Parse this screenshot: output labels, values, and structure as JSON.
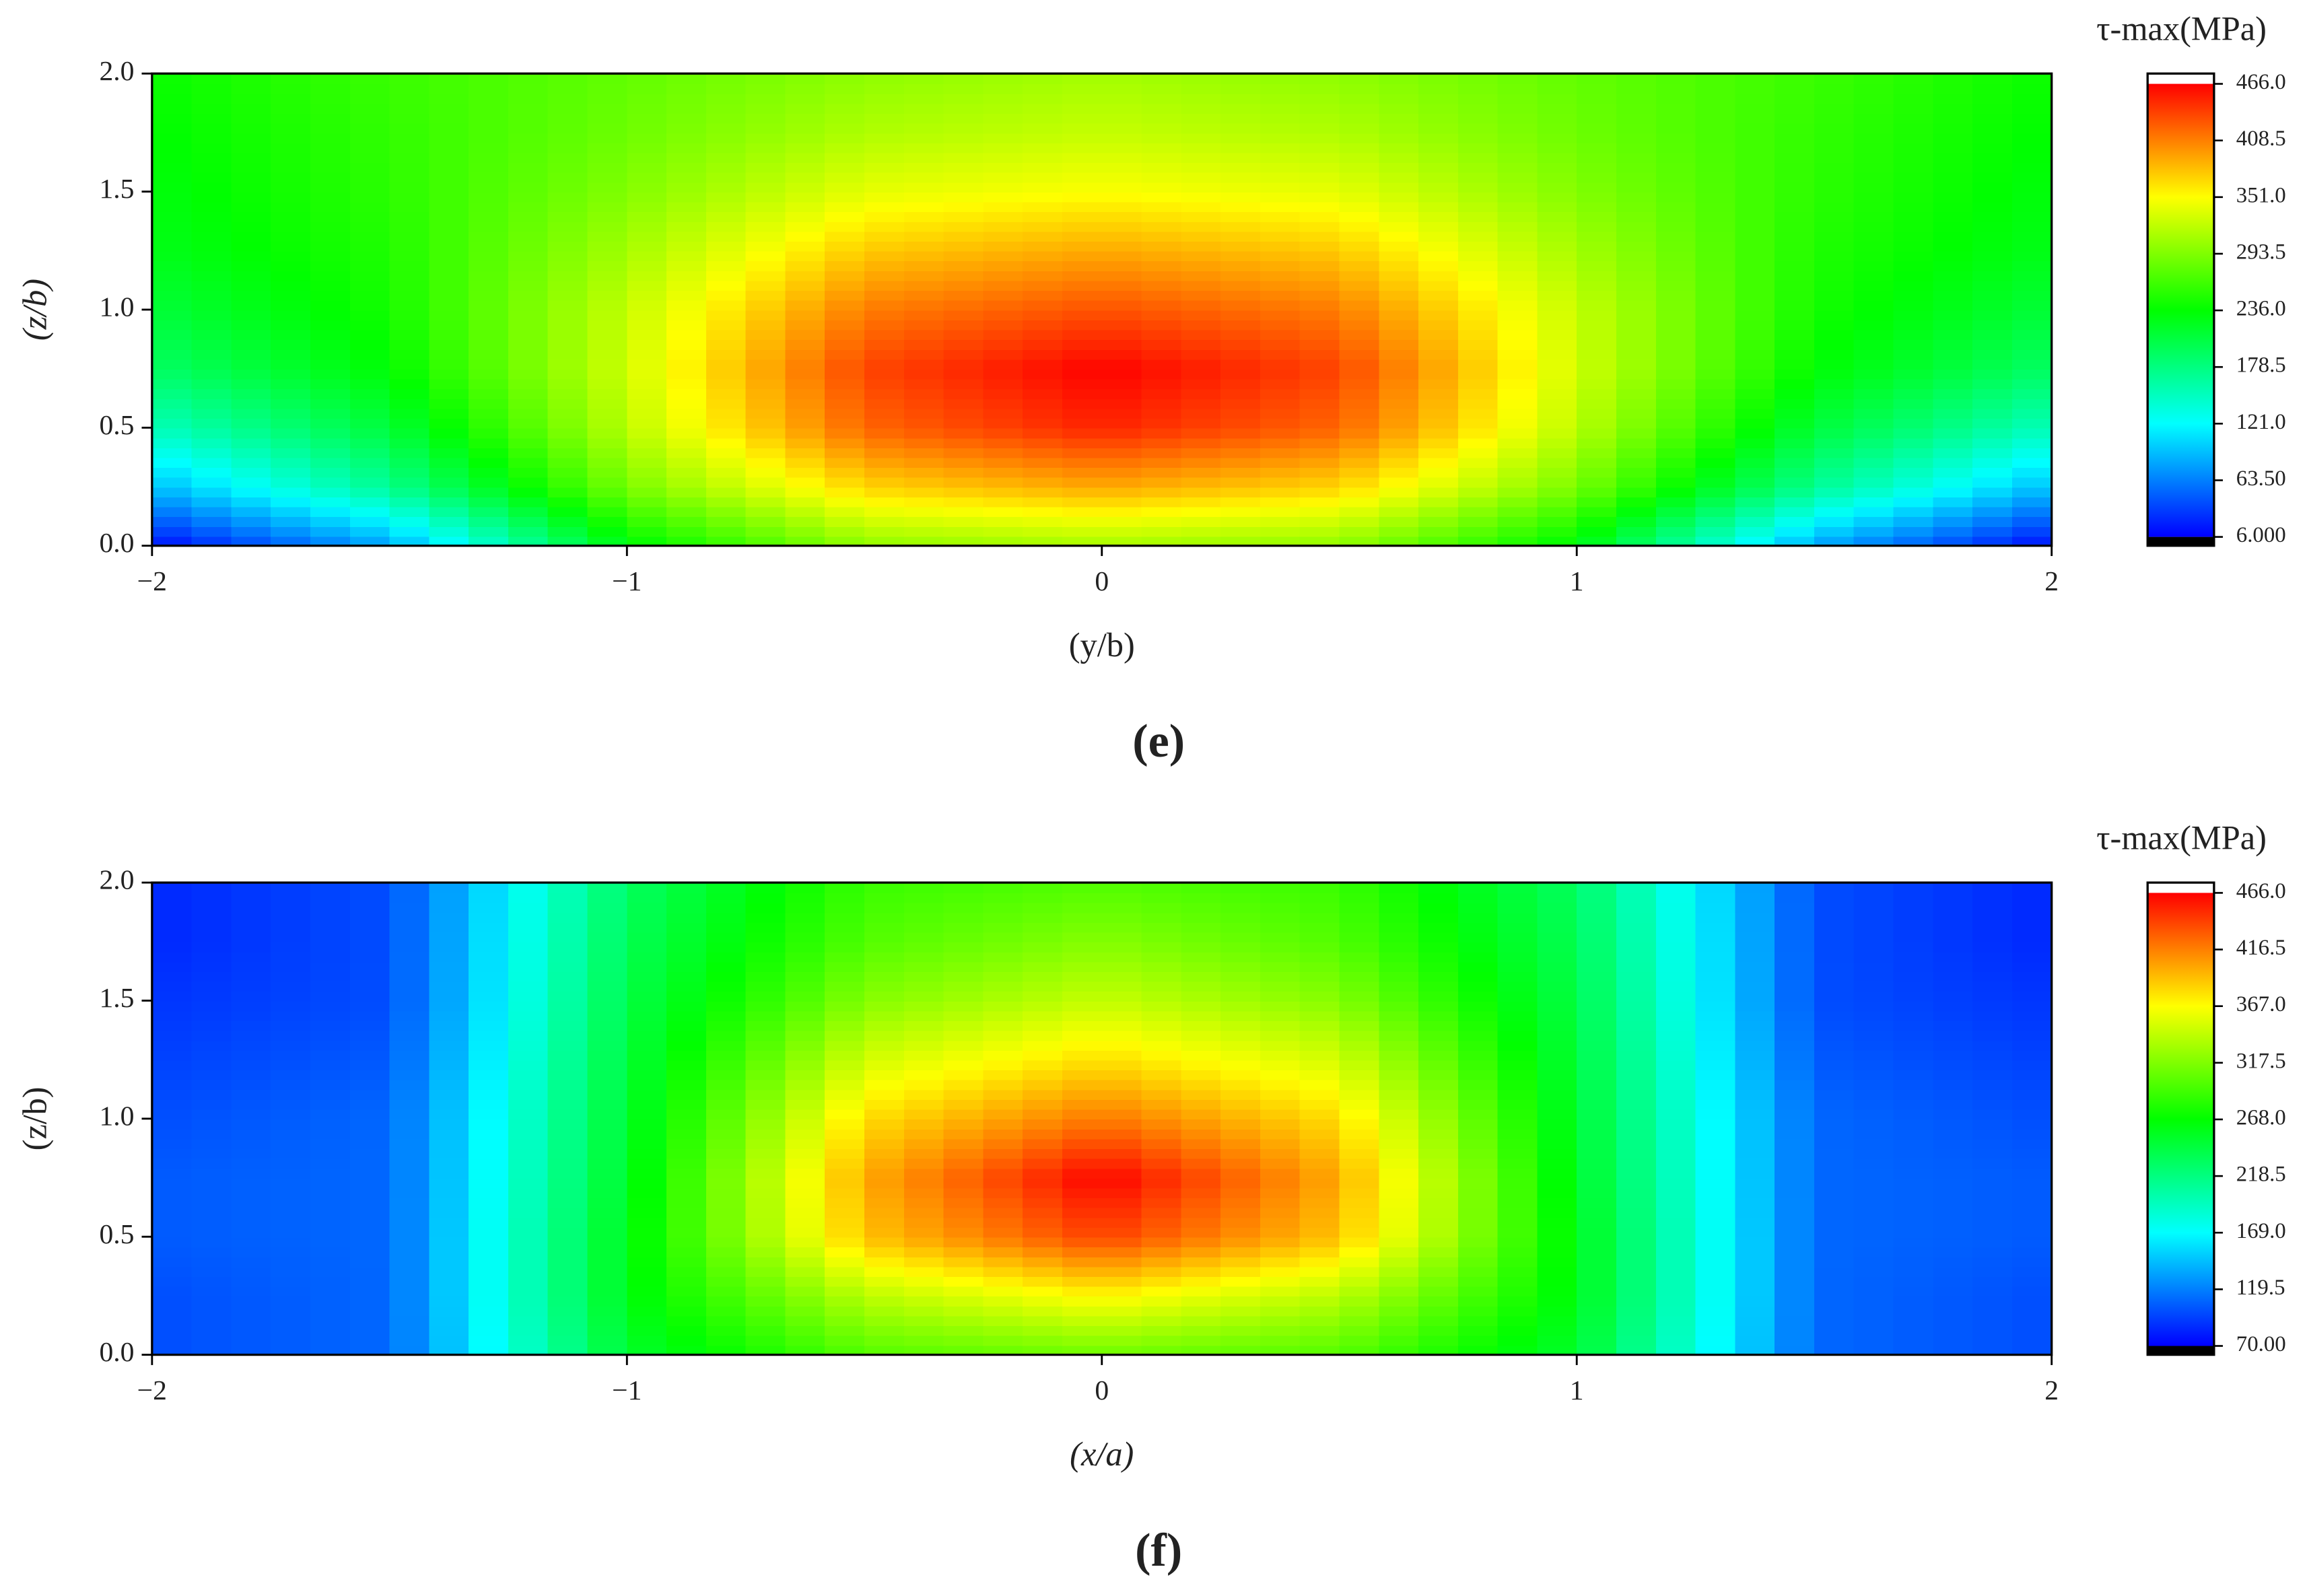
{
  "chart_data": [
    {
      "type": "contour",
      "panel": "(e)",
      "xlabel": "(y/b)",
      "ylabel": "(z/b)",
      "colorbar_title": "τ-max(MPa)",
      "xlim": [
        -2,
        2
      ],
      "ylim": [
        0,
        2
      ],
      "xticks": [
        {
          "value": -2,
          "label": "−2"
        },
        {
          "value": -1,
          "label": "−1"
        },
        0,
        1,
        2
      ],
      "yticks": [
        {
          "value": 0,
          "label": "0.0"
        },
        0.5,
        {
          "value": 1,
          "label": "1.0"
        },
        1.5,
        {
          "value": 2,
          "label": "2.0"
        }
      ],
      "clim": [
        6,
        466
      ],
      "cticks": [
        {
          "value": 6,
          "label": "6.000"
        },
        {
          "value": 63.5,
          "label": "63.50"
        },
        {
          "value": 121,
          "label": "121.0"
        },
        {
          "value": 178.5,
          "label": "178.5"
        },
        {
          "value": 236,
          "label": "236.0"
        },
        {
          "value": 293.5,
          "label": "293.5"
        },
        {
          "value": 351,
          "label": "351.0"
        },
        {
          "value": 408.5,
          "label": "408.5"
        },
        {
          "value": 466,
          "label": "466.0"
        }
      ],
      "colorscale": [
        "#0000ff",
        "#00ffff",
        "#00ff00",
        "#ffff00",
        "#ff0000"
      ],
      "x": [
        -2,
        -1.5,
        -1,
        -0.5,
        0,
        0.5,
        1,
        1.5,
        2
      ],
      "y": [
        0,
        0.25,
        0.5,
        0.75,
        1,
        1.25,
        1.5,
        1.75,
        2
      ],
      "z": [
        [
          10,
          80,
          230,
          300,
          310,
          300,
          230,
          80,
          10
        ],
        [
          90,
          170,
          290,
          370,
          390,
          370,
          290,
          170,
          90
        ],
        [
          150,
          210,
          320,
          420,
          450,
          420,
          320,
          210,
          150
        ],
        [
          190,
          235,
          330,
          435,
          466,
          435,
          330,
          235,
          190
        ],
        [
          210,
          245,
          325,
          410,
          430,
          410,
          325,
          245,
          210
        ],
        [
          225,
          250,
          310,
          375,
          390,
          375,
          310,
          250,
          225
        ],
        [
          230,
          255,
          295,
          340,
          350,
          340,
          295,
          255,
          230
        ],
        [
          235,
          258,
          285,
          315,
          325,
          315,
          285,
          258,
          235
        ],
        [
          240,
          262,
          280,
          300,
          310,
          300,
          280,
          262,
          240
        ]
      ]
    },
    {
      "type": "contour",
      "panel": "(f)",
      "xlabel": "(x/a)",
      "ylabel": "(z/b)",
      "colorbar_title": "τ-max(MPa)",
      "xlim": [
        -2,
        2
      ],
      "ylim": [
        0,
        2
      ],
      "xticks": [
        {
          "value": -2,
          "label": "−2"
        },
        {
          "value": -1,
          "label": "−1"
        },
        0,
        1,
        2
      ],
      "yticks": [
        {
          "value": 0,
          "label": "0.0"
        },
        0.5,
        {
          "value": 1,
          "label": "1.0"
        },
        1.5,
        {
          "value": 2,
          "label": "2.0"
        }
      ],
      "clim": [
        70,
        466
      ],
      "cticks": [
        {
          "value": 70,
          "label": "70.00"
        },
        {
          "value": 119.5,
          "label": "119.5"
        },
        {
          "value": 169,
          "label": "169.0"
        },
        {
          "value": 218.5,
          "label": "218.5"
        },
        {
          "value": 268,
          "label": "268.0"
        },
        {
          "value": 317.5,
          "label": "317.5"
        },
        {
          "value": 367,
          "label": "367.0"
        },
        {
          "value": 416.5,
          "label": "416.5"
        },
        {
          "value": 466,
          "label": "466.0"
        }
      ],
      "colorscale": [
        "#0000ff",
        "#00ffff",
        "#00ff00",
        "#ffff00",
        "#ff0000"
      ],
      "x": [
        -2,
        -1.5,
        -1,
        -0.5,
        0,
        0.5,
        1,
        1.5,
        2
      ],
      "y": [
        0,
        0.25,
        0.5,
        0.75,
        1,
        1.25,
        1.5,
        1.75,
        2
      ],
      "z": [
        [
          100,
          110,
          250,
          300,
          310,
          300,
          250,
          110,
          100
        ],
        [
          100,
          110,
          260,
          340,
          370,
          340,
          260,
          110,
          100
        ],
        [
          105,
          110,
          260,
          390,
          440,
          390,
          260,
          110,
          105
        ],
        [
          105,
          110,
          255,
          400,
          466,
          400,
          255,
          110,
          105
        ],
        [
          100,
          110,
          250,
          380,
          420,
          380,
          250,
          110,
          100
        ],
        [
          95,
          105,
          245,
          350,
          380,
          350,
          245,
          105,
          95
        ],
        [
          90,
          100,
          240,
          320,
          345,
          320,
          240,
          100,
          90
        ],
        [
          85,
          100,
          235,
          300,
          320,
          300,
          235,
          100,
          85
        ],
        [
          85,
          100,
          230,
          290,
          300,
          290,
          230,
          100,
          85
        ]
      ]
    }
  ]
}
